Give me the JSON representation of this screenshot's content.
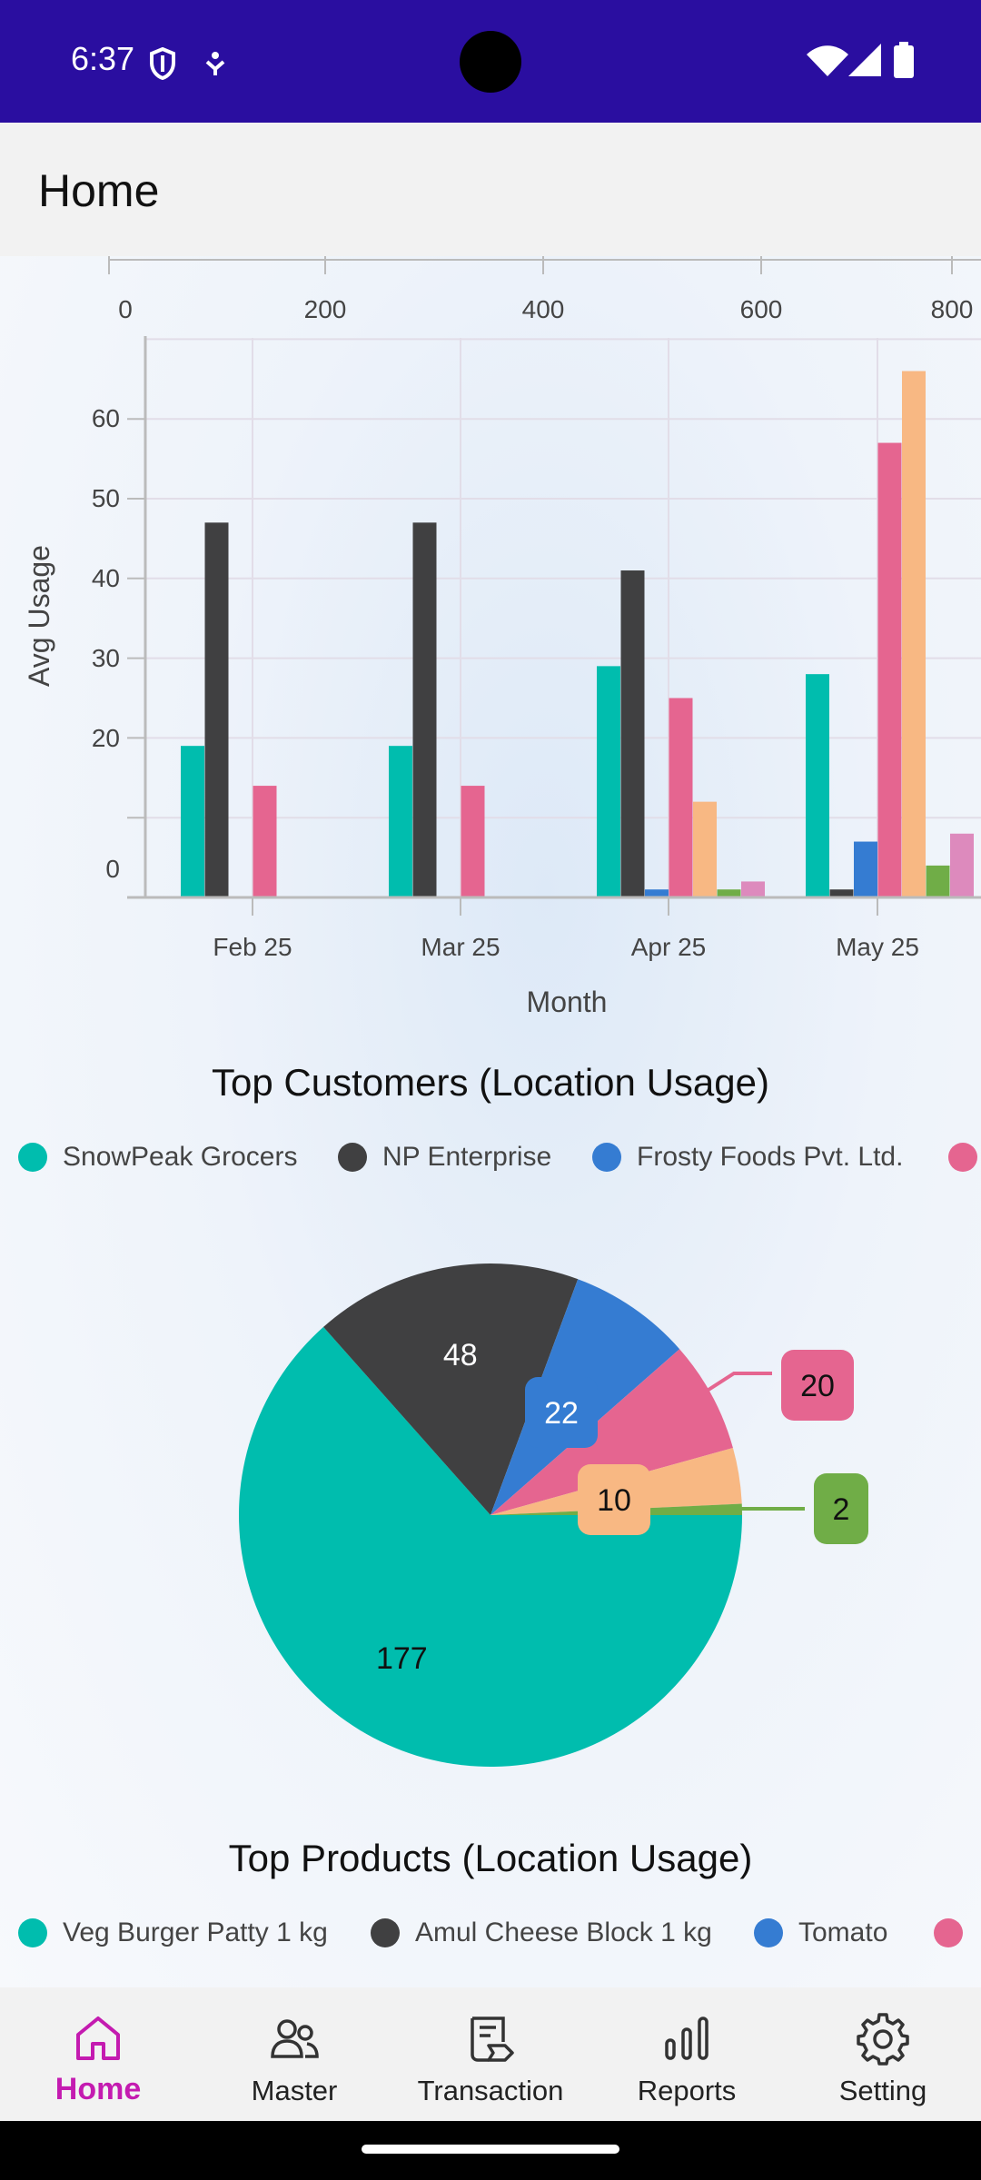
{
  "status_bar": {
    "time": "6:37",
    "icons": [
      "shield-icon",
      "accessibility-icon",
      "wifi-icon",
      "signal-icon",
      "battery-icon"
    ]
  },
  "app_bar": {
    "title": "Home"
  },
  "colors": {
    "status_bar": "#2a0ea0",
    "accent": "#c41bb0",
    "series": [
      "#00bdae",
      "#404041",
      "#357cd2",
      "#e56590",
      "#f8b883",
      "#70ad47",
      "#dd8abd"
    ]
  },
  "chart_data": [
    {
      "type": "bar",
      "title": "",
      "xlabel": "Month",
      "ylabel": "Avg Usage",
      "categories": [
        "Feb 25",
        "Mar 25",
        "Apr 25",
        "May 25"
      ],
      "top_axis_ticks": [
        "0",
        "200",
        "400",
        "600",
        "800"
      ],
      "y_ticks": [
        "0",
        "20",
        "30",
        "40",
        "50",
        "60"
      ],
      "grid": true,
      "series": [
        {
          "values": [
            19,
            19,
            29,
            28
          ]
        },
        {
          "values": [
            47,
            47,
            41,
            1
          ]
        },
        {
          "values": [
            0,
            0,
            1,
            7
          ]
        },
        {
          "values": [
            14,
            14,
            25,
            57
          ]
        },
        {
          "values": [
            0,
            0,
            12,
            66
          ]
        },
        {
          "values": [
            0,
            0,
            1,
            4
          ]
        },
        {
          "values": [
            0,
            0,
            2,
            8
          ]
        }
      ]
    },
    {
      "type": "pie",
      "title": "Top Customers (Location Usage)",
      "legend": [
        "SnowPeak Grocers",
        "NP Enterprise",
        "Frosty Foods Pvt. Ltd."
      ],
      "values": [
        177,
        48,
        22,
        20,
        10,
        2
      ],
      "labels": [
        "177",
        "48",
        "22",
        "20",
        "10",
        "2"
      ]
    }
  ],
  "products": {
    "title": "Top Products (Location Usage)",
    "legend": [
      "Veg Burger Patty 1 kg",
      "Amul Cheese Block 1 kg",
      "Tomato"
    ]
  },
  "nav": [
    {
      "label": "Home",
      "icon": "home-icon",
      "active": true
    },
    {
      "label": "Master",
      "icon": "users-icon"
    },
    {
      "label": "Transaction",
      "icon": "receipt-icon"
    },
    {
      "label": "Reports",
      "icon": "bar-chart-icon"
    },
    {
      "label": "Setting",
      "icon": "gear-icon"
    }
  ]
}
